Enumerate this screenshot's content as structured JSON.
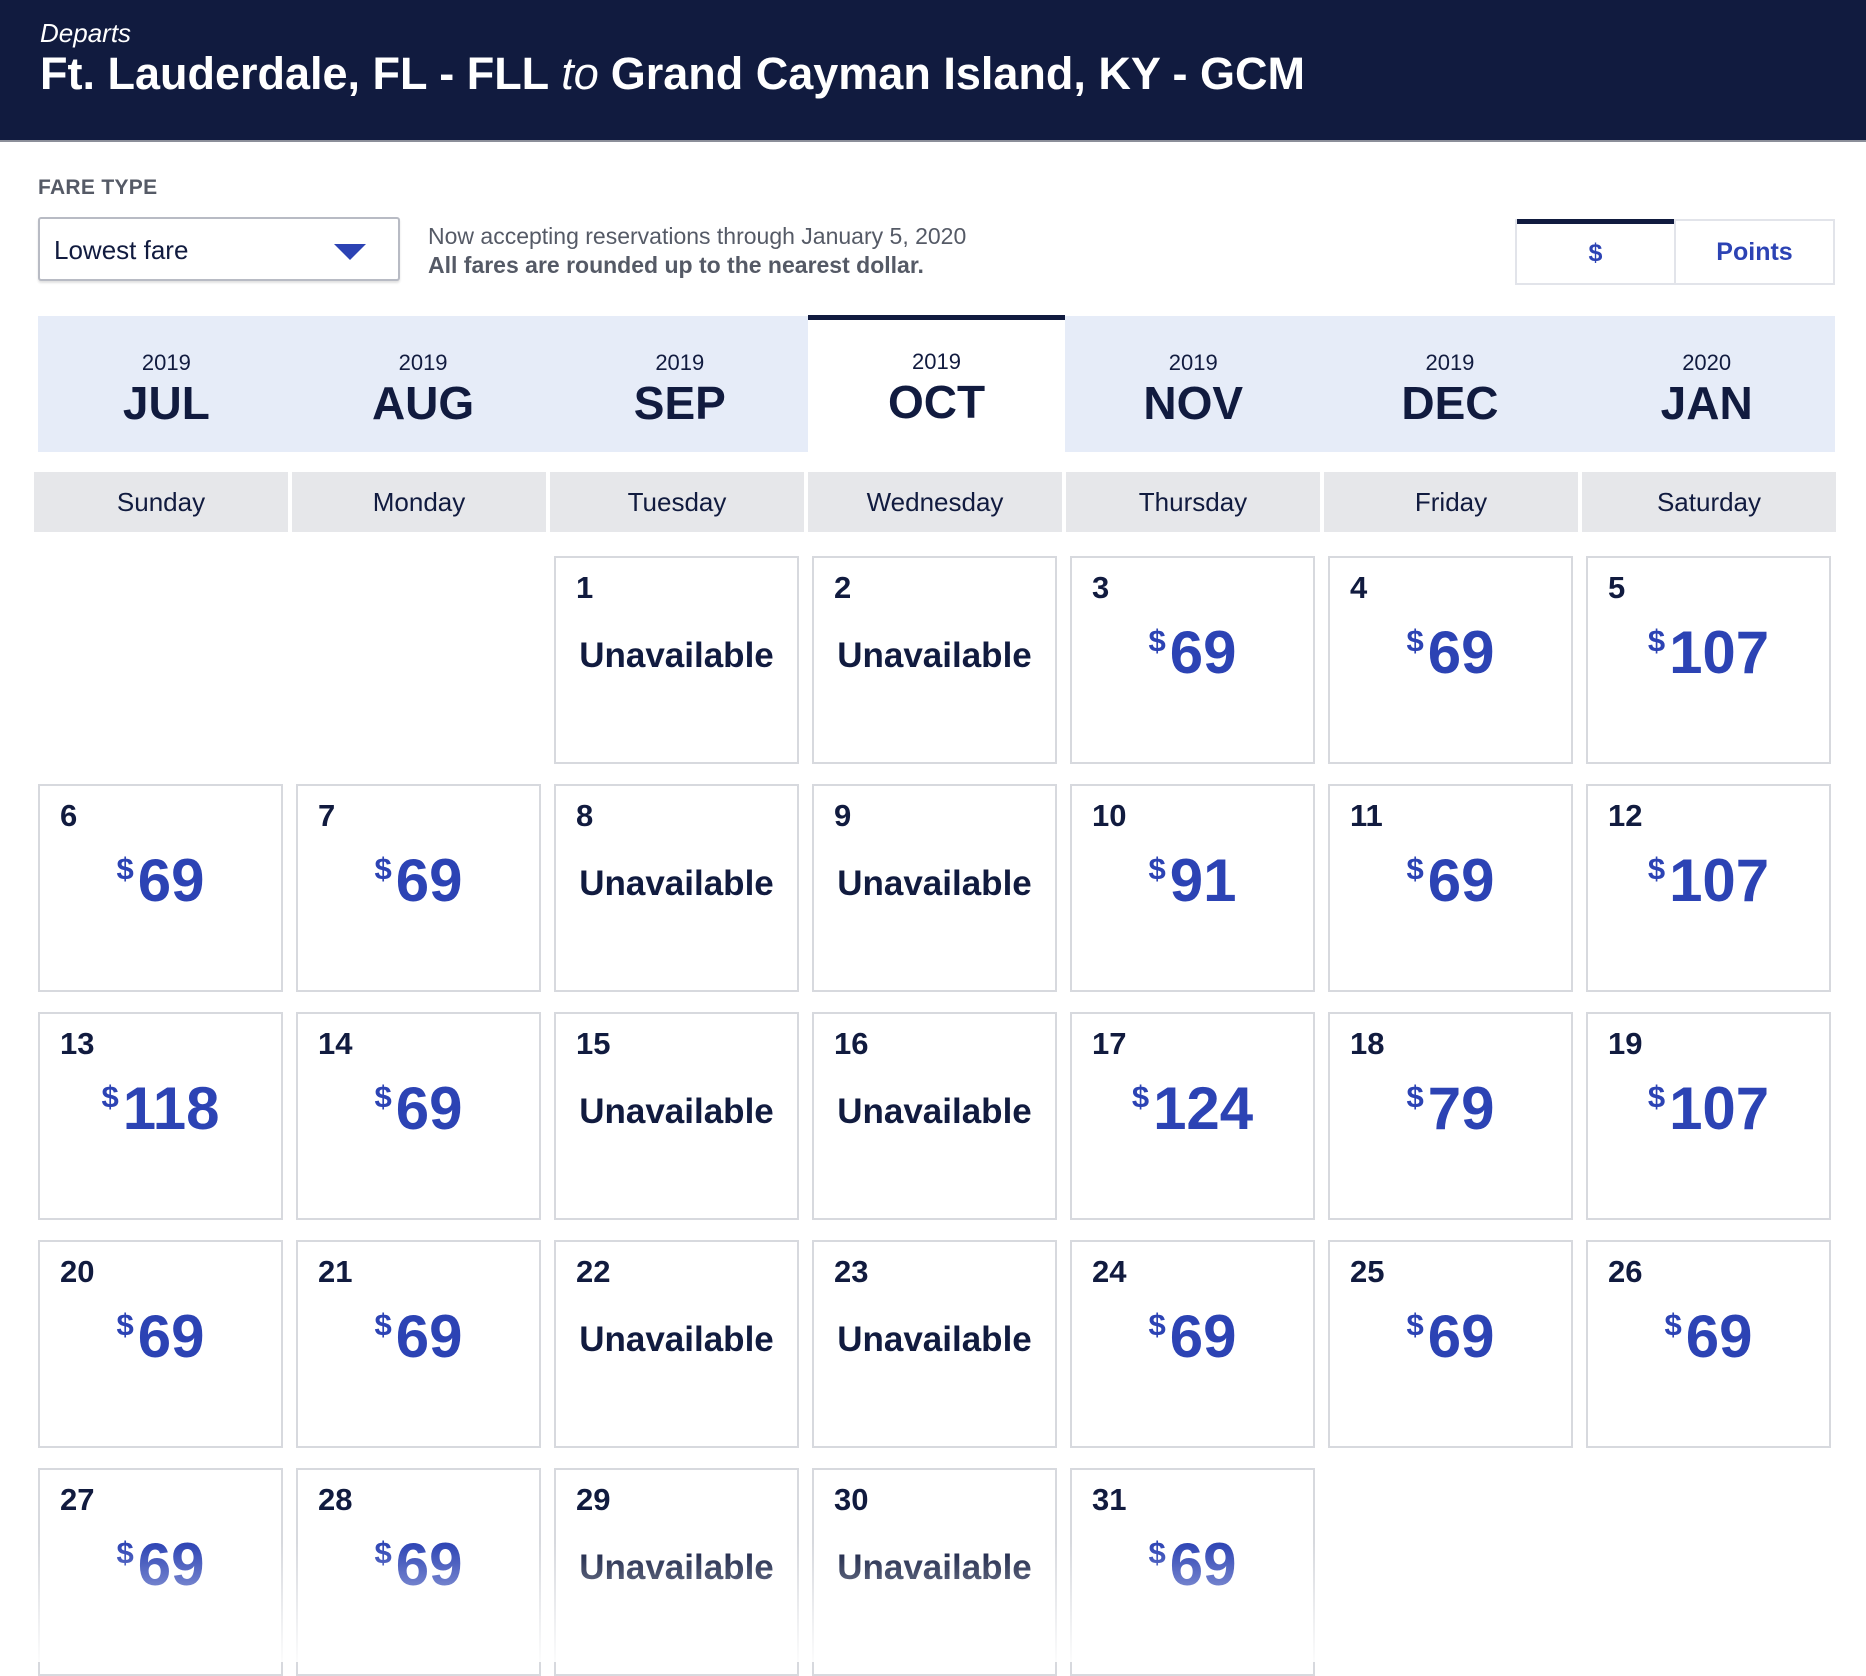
{
  "header": {
    "label": "Departs",
    "origin": "Ft. Lauderdale, FL - FLL",
    "connector": "to",
    "destination": "Grand Cayman Island, KY - GCM"
  },
  "fare_type": {
    "label": "FARE TYPE",
    "selected": "Lowest fare"
  },
  "notice": {
    "line1": "Now accepting reservations through January 5, 2020",
    "line2": "All fares are rounded up to the nearest dollar."
  },
  "currency_toggle": {
    "options": [
      "$",
      "Points"
    ],
    "active": "$"
  },
  "months": [
    {
      "year": "2019",
      "month": "JUL",
      "active": false
    },
    {
      "year": "2019",
      "month": "AUG",
      "active": false
    },
    {
      "year": "2019",
      "month": "SEP",
      "active": false
    },
    {
      "year": "2019",
      "month": "OCT",
      "active": true
    },
    {
      "year": "2019",
      "month": "NOV",
      "active": false
    },
    {
      "year": "2019",
      "month": "DEC",
      "active": false
    },
    {
      "year": "2020",
      "month": "JAN",
      "active": false
    }
  ],
  "weekdays": [
    "Sunday",
    "Monday",
    "Tuesday",
    "Wednesday",
    "Thursday",
    "Friday",
    "Saturday"
  ],
  "calendar": {
    "leading_blank_days": 2,
    "currency_symbol": "$",
    "days": [
      {
        "day": "1",
        "status": "Unavailable"
      },
      {
        "day": "2",
        "status": "Unavailable"
      },
      {
        "day": "3",
        "fare": "69"
      },
      {
        "day": "4",
        "fare": "69"
      },
      {
        "day": "5",
        "fare": "107"
      },
      {
        "day": "6",
        "fare": "69"
      },
      {
        "day": "7",
        "fare": "69"
      },
      {
        "day": "8",
        "status": "Unavailable"
      },
      {
        "day": "9",
        "status": "Unavailable"
      },
      {
        "day": "10",
        "fare": "91"
      },
      {
        "day": "11",
        "fare": "69"
      },
      {
        "day": "12",
        "fare": "107"
      },
      {
        "day": "13",
        "fare": "118"
      },
      {
        "day": "14",
        "fare": "69"
      },
      {
        "day": "15",
        "status": "Unavailable"
      },
      {
        "day": "16",
        "status": "Unavailable"
      },
      {
        "day": "17",
        "fare": "124"
      },
      {
        "day": "18",
        "fare": "79"
      },
      {
        "day": "19",
        "fare": "107"
      },
      {
        "day": "20",
        "fare": "69"
      },
      {
        "day": "21",
        "fare": "69"
      },
      {
        "day": "22",
        "status": "Unavailable"
      },
      {
        "day": "23",
        "status": "Unavailable"
      },
      {
        "day": "24",
        "fare": "69"
      },
      {
        "day": "25",
        "fare": "69"
      },
      {
        "day": "26",
        "fare": "69"
      },
      {
        "day": "27",
        "fare": "69"
      },
      {
        "day": "28",
        "fare": "69"
      },
      {
        "day": "29",
        "status": "Unavailable"
      },
      {
        "day": "30",
        "status": "Unavailable"
      },
      {
        "day": "31",
        "fare": "69"
      }
    ]
  },
  "colors": {
    "header_bg": "#111b3f",
    "fare_blue": "#2c43b4",
    "month_tab_bg": "#e6ecf8",
    "weekday_bg": "#e6e7ea"
  }
}
